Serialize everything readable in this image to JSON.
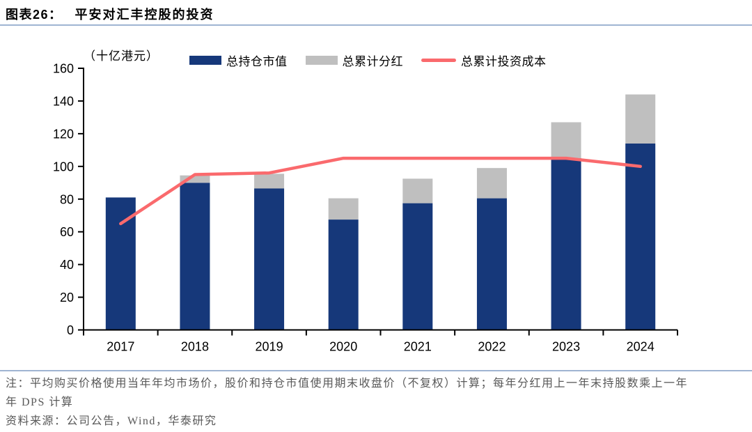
{
  "header": {
    "label": "图表26：",
    "title": "平安对汇丰控股的投资"
  },
  "chart": {
    "unit_label": "（十亿港元）",
    "legend": [
      {
        "label": "总持仓市值",
        "swatch": "bar",
        "color": "#16387A"
      },
      {
        "label": "总累计分红",
        "swatch": "bar",
        "color": "#BFBFBF"
      },
      {
        "label": "总累计投资成本",
        "swatch": "line",
        "color": "#FA6A6D"
      }
    ]
  },
  "chart_data": {
    "type": "bar",
    "subtype": "stacked-bars-with-line",
    "title": "平安对汇丰控股的投资",
    "categories": [
      "2017",
      "2018",
      "2019",
      "2020",
      "2021",
      "2022",
      "2023",
      "2024"
    ],
    "series": [
      {
        "name": "总持仓市值",
        "type": "bar",
        "stack": "total",
        "color": "#16387A",
        "values": [
          81,
          90,
          86.5,
          67.5,
          77.5,
          80.5,
          105,
          114
        ]
      },
      {
        "name": "总累计分红",
        "type": "bar",
        "stack": "total",
        "color": "#BFBFBF",
        "values": [
          0,
          4.5,
          9,
          13,
          15,
          18.5,
          22,
          30
        ]
      },
      {
        "name": "总累计投资成本",
        "type": "line",
        "color": "#FA6A6D",
        "values": [
          65,
          95,
          96,
          105,
          105,
          105,
          105,
          100
        ]
      }
    ],
    "xlabel": "",
    "ylabel": "（十亿港元）",
    "ylim": [
      0,
      160
    ],
    "ytick_step": 20,
    "grid": false,
    "legend_position": "top"
  },
  "footer": {
    "note_line1": "注：平均购买价格使用当年年均市场价，股价和持仓市值使用期末收盘价（不复权）计算；每年分红用上一年末持股数乘上一年",
    "note_line2": "年 DPS 计算",
    "source": "资料来源：公司公告，Wind，华泰研究"
  },
  "colors": {
    "bar_primary": "#16387A",
    "bar_secondary": "#BFBFBF",
    "line": "#FA6A6D",
    "divider": "#9FB4D2",
    "note_text": "#595959",
    "axis": "#000000"
  }
}
